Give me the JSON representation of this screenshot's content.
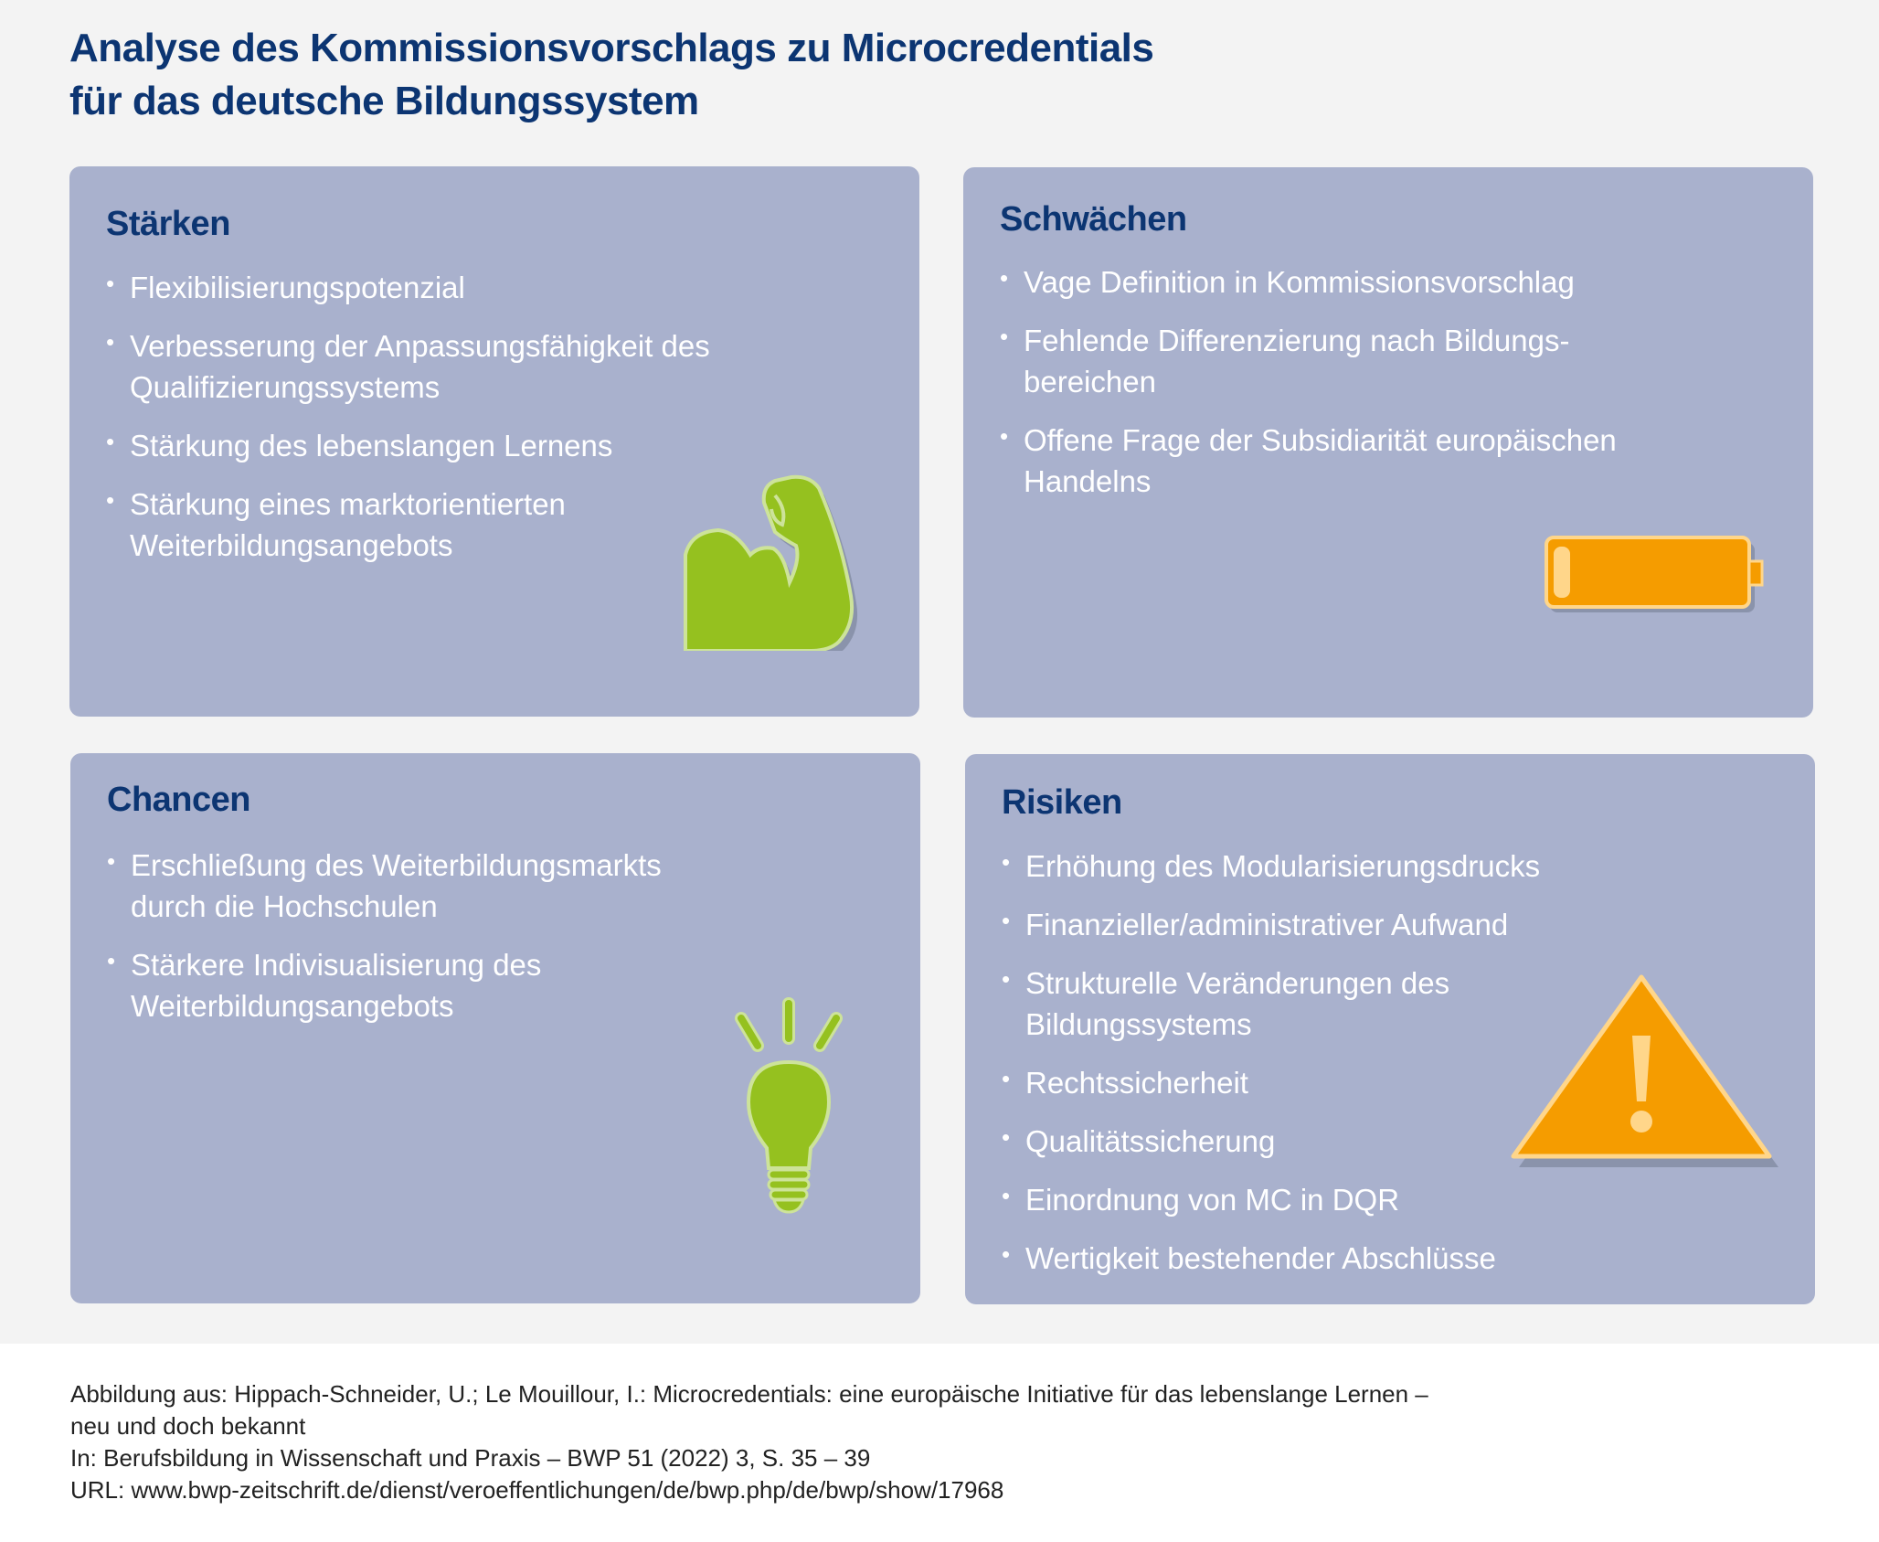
{
  "title": [
    "Analyse des Kommissionsvorschlags zu Microcredentials",
    "für das deutsche Bildungssystem"
  ],
  "colors": {
    "title": "#0c3572",
    "panel": "#a9b1cd",
    "green": "#95c11f",
    "orange": "#f59c00"
  },
  "panels": {
    "staerken": {
      "heading": "Stärken",
      "icon": "flexed-arm-icon",
      "items": [
        "Flexibilisierungspotenzial",
        "Verbesserung der Anpassungsfähigkeit des Qualifizierungssystems",
        "Stärkung des lebenslangen Lernens",
        "Stärkung eines marktorientierten Weiterbildungsangebots"
      ]
    },
    "schwaechen": {
      "heading": "Schwächen",
      "icon": "low-battery-icon",
      "items": [
        "Vage Definition in Kommissionsvorschlag",
        "Fehlende Differenzierung nach Bildungs-bereichen",
        "Offene Frage der Subsidiarität europäischen Handelns"
      ]
    },
    "chancen": {
      "heading": "Chancen",
      "icon": "lightbulb-icon",
      "items": [
        "Erschließung des Weiterbildungsmarkts durch die Hochschulen",
        "Stärkere Indivisualisierung des Weiterbildungsangebots"
      ]
    },
    "risiken": {
      "heading": "Risiken",
      "icon": "warning-icon",
      "items": [
        "Erhöhung des Modularisierungsdrucks",
        "Finanzieller/administrativer Aufwand",
        "Strukturelle Veränderungen des Bildungssystems",
        "Rechtssicherheit",
        "Qualitätssicherung",
        "Einordnung von MC in DQR",
        "Wertigkeit bestehender Abschlüsse"
      ]
    }
  },
  "footer": [
    "Abbildung aus: Hippach-Schneider, U.; Le Mouillour, I.: Microcredentials: eine europäische Initiative für das lebenslange Lernen –",
    "neu und doch bekannt",
    "In: Berufsbildung in Wissenschaft und Praxis – BWP 51 (2022) 3, S. 35 – 39",
    "URL: www.bwp-zeitschrift.de/dienst/veroeffentlichungen/de/bwp.php/de/bwp/show/17968"
  ]
}
